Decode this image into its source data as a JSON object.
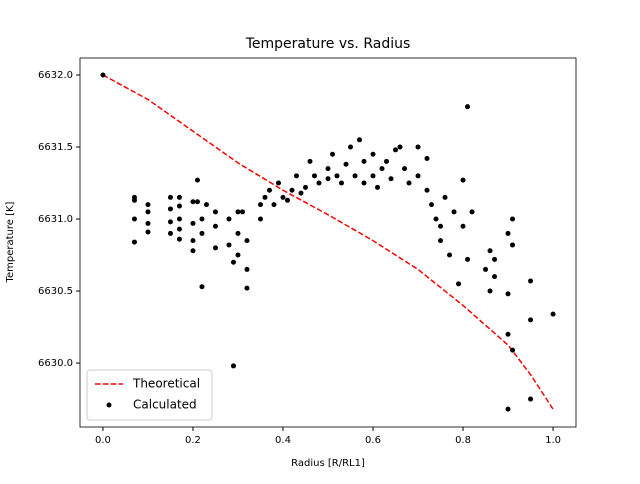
{
  "chart_data": {
    "type": "scatter",
    "title": "Temperature vs. Radius",
    "x_label": "Radius [R/RL1]",
    "y_label": "Temperature [K]",
    "xlim": [
      -0.051,
      1.051
    ],
    "ylim": [
      6629.556,
      6632.118
    ],
    "xticks": [
      {
        "value": 0,
        "label": "0.0"
      },
      0.2,
      0.4,
      0.6,
      0.8,
      {
        "value": 1,
        "label": "1.0"
      }
    ],
    "yticks": [
      {
        "value": 6630,
        "label": "6630.0"
      },
      6630.5,
      {
        "value": 6631,
        "label": "6631.0"
      },
      6631.5,
      {
        "value": 6632,
        "label": "6632.0"
      }
    ],
    "legend": "lower left",
    "series": [
      {
        "name": "Theoretical",
        "kind": "line",
        "dash": true,
        "color": "#ff0000",
        "x": [
          0,
          0.1,
          0.2,
          0.3,
          0.4,
          0.5,
          0.6,
          0.7,
          0.8,
          0.9,
          0.95,
          1.0
        ],
        "values": [
          6632.0,
          6631.83,
          6631.61,
          6631.39,
          6631.2,
          6631.03,
          6630.85,
          6630.65,
          6630.4,
          6630.125,
          6629.92,
          6629.68
        ]
      },
      {
        "name": "Calculated",
        "kind": "points",
        "color": "#000000",
        "x": [
          0,
          0.07,
          0.07,
          0.07,
          0.07,
          0.1,
          0.1,
          0.1,
          0.1,
          0.15,
          0.15,
          0.15,
          0.15,
          0.17,
          0.17,
          0.17,
          0.17,
          0.17,
          0.2,
          0.2,
          0.2,
          0.2,
          0.21,
          0.21,
          0.22,
          0.22,
          0.22,
          0.23,
          0.25,
          0.25,
          0.25,
          0.28,
          0.28,
          0.29,
          0.29,
          0.3,
          0.3,
          0.3,
          0.31,
          0.32,
          0.32,
          0.32,
          0.35,
          0.35,
          0.36,
          0.37,
          0.38,
          0.39,
          0.4,
          0.41,
          0.42,
          0.43,
          0.44,
          0.45,
          0.46,
          0.47,
          0.48,
          0.5,
          0.5,
          0.51,
          0.52,
          0.53,
          0.54,
          0.55,
          0.56,
          0.57,
          0.58,
          0.58,
          0.6,
          0.6,
          0.61,
          0.62,
          0.63,
          0.64,
          0.65,
          0.66,
          0.67,
          0.68,
          0.7,
          0.7,
          0.72,
          0.72,
          0.73,
          0.74,
          0.75,
          0.75,
          0.76,
          0.77,
          0.78,
          0.79,
          0.8,
          0.8,
          0.81,
          0.81,
          0.82,
          0.85,
          0.86,
          0.86,
          0.87,
          0.87,
          0.9,
          0.9,
          0.9,
          0.91,
          0.91,
          0.91,
          0.95,
          0.95,
          0.95,
          1.0,
          0.9
        ],
        "values": [
          6632.0,
          6631.15,
          6631.13,
          6631.0,
          6630.84,
          6631.1,
          6631.05,
          6630.97,
          6630.91,
          6631.15,
          6631.07,
          6630.98,
          6630.9,
          6631.15,
          6631.09,
          6631.0,
          6630.93,
          6630.86,
          6631.12,
          6630.97,
          6630.85,
          6630.78,
          6631.27,
          6631.12,
          6631.0,
          6630.9,
          6630.53,
          6631.1,
          6631.05,
          6630.95,
          6630.8,
          6631.0,
          6630.82,
          6630.7,
          6629.98,
          6631.05,
          6630.9,
          6630.75,
          6631.05,
          6630.65,
          6630.52,
          6630.85,
          6631.1,
          6631.0,
          6631.15,
          6631.2,
          6631.1,
          6631.25,
          6631.15,
          6631.13,
          6631.2,
          6631.3,
          6631.18,
          6631.22,
          6631.4,
          6631.3,
          6631.25,
          6631.35,
          6631.28,
          6631.45,
          6631.3,
          6631.25,
          6631.38,
          6631.5,
          6631.3,
          6631.55,
          6631.4,
          6631.25,
          6631.45,
          6631.3,
          6631.22,
          6631.35,
          6631.4,
          6631.28,
          6631.48,
          6631.5,
          6631.35,
          6631.25,
          6631.5,
          6631.3,
          6631.42,
          6631.2,
          6631.1,
          6631.0,
          6630.95,
          6630.85,
          6631.15,
          6630.75,
          6631.05,
          6630.55,
          6631.27,
          6630.95,
          6631.78,
          6630.72,
          6631.05,
          6630.65,
          6630.78,
          6630.5,
          6630.6,
          6630.72,
          6630.9,
          6630.48,
          6630.2,
          6631.0,
          6630.82,
          6630.09,
          6630.57,
          6630.3,
          6629.75,
          6630.34,
          6629.68
        ]
      }
    ]
  }
}
